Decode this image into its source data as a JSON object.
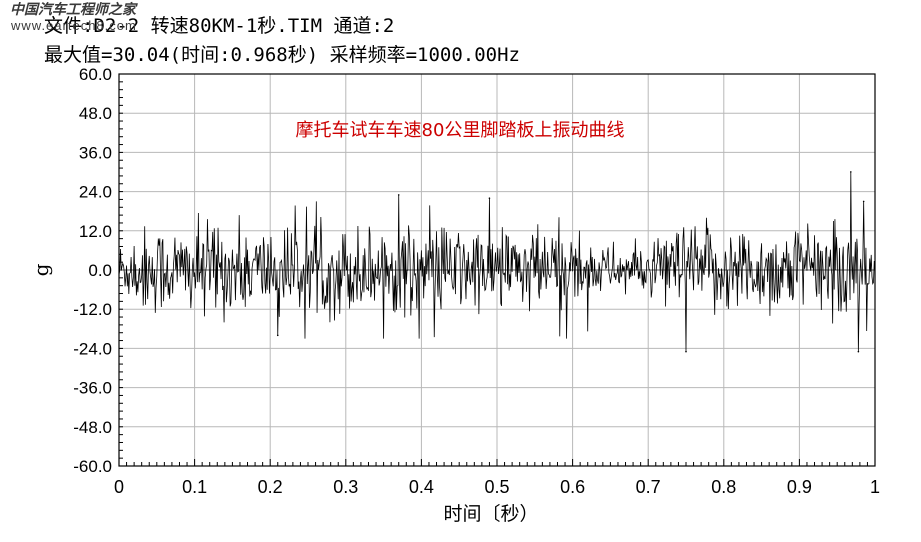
{
  "watermark": {
    "site_name": "中国汽车工程师之家",
    "url": "www.eartech8.com"
  },
  "header": {
    "file_line": "文件:D2-2 转速80KM-1秒.TIM 通道:2",
    "stats_line": "最大值=30.04(时间:0.968秒) 采样频率=1000.00Hz"
  },
  "chart_data": {
    "type": "line",
    "title": "摩托车试车车速80公里脚踏板上振动曲线",
    "xlabel": "时间〔秒）",
    "ylabel": "g",
    "xlim": [
      0,
      1
    ],
    "ylim": [
      -60,
      60
    ],
    "x_ticks": [
      0,
      0.1,
      0.2,
      0.3,
      0.4,
      0.5,
      0.6,
      0.7,
      0.8,
      0.9,
      1
    ],
    "x_tick_labels": [
      "0",
      "0.1",
      "0.2",
      "0.3",
      "0.4",
      "0.5",
      "0.6",
      "0.7",
      "0.8",
      "0.9",
      "1"
    ],
    "y_ticks": [
      60,
      48,
      36,
      24,
      12,
      0,
      -12,
      -24,
      -36,
      -48,
      -60
    ],
    "y_tick_labels": [
      "60.0",
      "48.0",
      "36.0",
      "24.0",
      "12.0",
      "0.0",
      "-12.0",
      "-24.0",
      "-36.0",
      "-48.0",
      "-60.0"
    ],
    "grid": true,
    "sample_rate_hz": 1000,
    "max_value": 30.04,
    "max_time": 0.968,
    "series": [
      {
        "name": "通道2",
        "peaks": [
          {
            "x": 0.968,
            "y": 30.04
          },
          {
            "x": 0.75,
            "y": -25.0
          },
          {
            "x": 0.978,
            "y": -25.0
          },
          {
            "x": 0.21,
            "y": -20.0
          },
          {
            "x": 0.37,
            "y": 23.0
          },
          {
            "x": 0.49,
            "y": 22.0
          },
          {
            "x": 0.985,
            "y": 21.0
          }
        ],
        "typical_amplitude": 12
      }
    ]
  }
}
